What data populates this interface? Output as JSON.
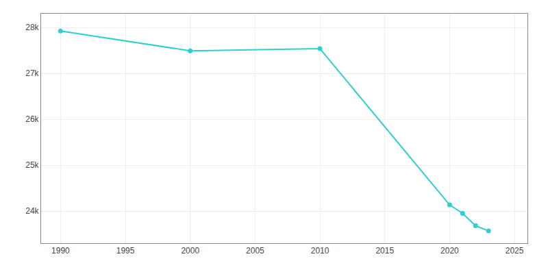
{
  "chart_data": {
    "type": "line",
    "x": [
      1990,
      2000,
      2010,
      2020,
      2021,
      2022,
      2023
    ],
    "values": [
      27924,
      27491,
      27537,
      24135,
      23949,
      23680,
      23567
    ],
    "color": "#2ecfcf",
    "marker": "circle",
    "xlim": [
      1988.5,
      2026
    ],
    "ylim": [
      23300,
      28300
    ],
    "xticks": [
      1990,
      1995,
      2000,
      2005,
      2010,
      2015,
      2020,
      2025
    ],
    "yticks": [
      {
        "value": 24000,
        "label": "24k"
      },
      {
        "value": 25000,
        "label": "25k"
      },
      {
        "value": 26000,
        "label": "26k"
      },
      {
        "value": 27000,
        "label": "27k"
      },
      {
        "value": 28000,
        "label": "28k"
      }
    ],
    "grid": true
  }
}
